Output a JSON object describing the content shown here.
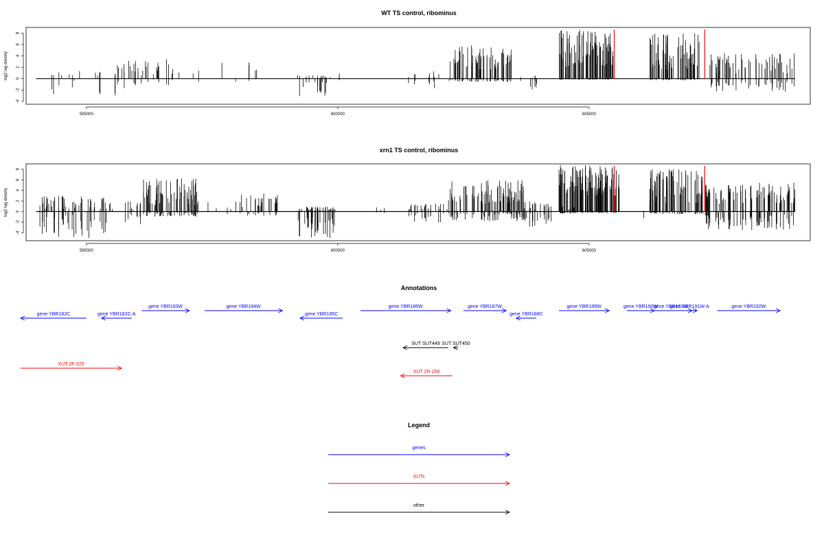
{
  "chart_data": [
    {
      "type": "bar",
      "title": "WT TS control, ribominus",
      "ylabel": "log2 tag density",
      "xlabel": "",
      "xlim": [
        593800,
        609400
      ],
      "ylim": [
        -4.5,
        9
      ],
      "xticks": [
        595000,
        600000,
        605000
      ],
      "yticks": [
        -4,
        -2,
        0,
        2,
        4,
        6,
        8
      ],
      "marker_lines": [
        605500,
        607300
      ],
      "marker_color": "#ff0000",
      "bar_color": "#000000",
      "segments": [
        {
          "start": 594000,
          "end": 595800,
          "pos": [
            0.3,
            1.5
          ],
          "neg": [
            0.3,
            3.4
          ],
          "density": 0.12
        },
        {
          "start": 595600,
          "end": 596800,
          "pos": [
            0.5,
            3.4
          ],
          "neg": [
            0,
            1.2
          ],
          "density": 0.35
        },
        {
          "start": 596800,
          "end": 598400,
          "pos": [
            0.3,
            3.0
          ],
          "neg": [
            0,
            0.6
          ],
          "density": 0.08
        },
        {
          "start": 599200,
          "end": 599900,
          "pos": [
            0,
            0.6
          ],
          "neg": [
            0.5,
            3.5
          ],
          "density": 0.5
        },
        {
          "start": 600000,
          "end": 600300,
          "pos": [
            0.3,
            1.0
          ],
          "neg": [
            0,
            0.3
          ],
          "density": 0.1
        },
        {
          "start": 601200,
          "end": 602100,
          "pos": [
            0.3,
            1.3
          ],
          "neg": [
            0.3,
            1.8
          ],
          "density": 0.12
        },
        {
          "start": 602200,
          "end": 603500,
          "pos": [
            1.5,
            6.0
          ],
          "neg": [
            0,
            0.6
          ],
          "density": 0.9
        },
        {
          "start": 603500,
          "end": 604000,
          "pos": [
            0,
            0.6
          ],
          "neg": [
            0.3,
            2.3
          ],
          "density": 0.2
        },
        {
          "start": 604400,
          "end": 605500,
          "pos": [
            2.0,
            8.6
          ],
          "neg": [
            0,
            0.2
          ],
          "density": 1.4
        },
        {
          "start": 606200,
          "end": 607200,
          "pos": [
            1.5,
            8.0
          ],
          "neg": [
            0,
            0.3
          ],
          "density": 1.1
        },
        {
          "start": 607400,
          "end": 609100,
          "pos": [
            0.8,
            4.5
          ],
          "neg": [
            0,
            2.3
          ],
          "density": 0.55
        }
      ]
    },
    {
      "type": "bar",
      "title": "xrn1 TS control, ribominus",
      "ylabel": "log2 tag density",
      "xlabel": "",
      "xlim": [
        593800,
        609400
      ],
      "ylim": [
        -5.5,
        9
      ],
      "xticks": [
        595000,
        600000,
        605000
      ],
      "yticks": [
        -4,
        -2,
        0,
        2,
        4,
        6,
        8
      ],
      "marker_lines": [
        605500,
        607300
      ],
      "marker_color": "#ff0000",
      "bar_color": "#000000",
      "segments": [
        {
          "start": 594000,
          "end": 595400,
          "pos": [
            0.5,
            3.0
          ],
          "neg": [
            0.5,
            5.0
          ],
          "density": 0.6
        },
        {
          "start": 595400,
          "end": 596100,
          "pos": [
            0.3,
            2.0
          ],
          "neg": [
            0,
            2.5
          ],
          "density": 0.3
        },
        {
          "start": 596100,
          "end": 597200,
          "pos": [
            1.0,
            6.3
          ],
          "neg": [
            0,
            1.0
          ],
          "density": 1.0
        },
        {
          "start": 597200,
          "end": 598000,
          "pos": [
            0.3,
            2.0
          ],
          "neg": [
            0,
            0.5
          ],
          "density": 0.15
        },
        {
          "start": 598000,
          "end": 598800,
          "pos": [
            0.5,
            3.5
          ],
          "neg": [
            0,
            0.8
          ],
          "density": 0.5
        },
        {
          "start": 599200,
          "end": 599950,
          "pos": [
            0,
            1.0
          ],
          "neg": [
            1.0,
            5.0
          ],
          "density": 1.0
        },
        {
          "start": 600300,
          "end": 601000,
          "pos": [
            0.3,
            0.8
          ],
          "neg": [
            0,
            0.3
          ],
          "density": 0.05
        },
        {
          "start": 601300,
          "end": 602200,
          "pos": [
            0.3,
            1.5
          ],
          "neg": [
            0.3,
            2.2
          ],
          "density": 0.35
        },
        {
          "start": 602200,
          "end": 603700,
          "pos": [
            1.5,
            6.0
          ],
          "neg": [
            0,
            1.8
          ],
          "density": 1.0
        },
        {
          "start": 603700,
          "end": 604300,
          "pos": [
            0.3,
            2.0
          ],
          "neg": [
            0.3,
            3.0
          ],
          "density": 0.6
        },
        {
          "start": 604300,
          "end": 605100,
          "pos": [
            0.3,
            1.0
          ],
          "neg": [
            0,
            0.5
          ],
          "density": 0.1
        },
        {
          "start": 604400,
          "end": 605600,
          "pos": [
            3.0,
            8.8
          ],
          "neg": [
            0,
            0.3
          ],
          "density": 1.6
        },
        {
          "start": 605800,
          "end": 606100,
          "pos": [
            0,
            0.5
          ],
          "neg": [
            0,
            1.5
          ],
          "density": 0.1
        },
        {
          "start": 606200,
          "end": 607300,
          "pos": [
            1.5,
            8.2
          ],
          "neg": [
            0,
            0.5
          ],
          "density": 1.2
        },
        {
          "start": 607300,
          "end": 609100,
          "pos": [
            1.5,
            5.5
          ],
          "neg": [
            0.5,
            3.5
          ],
          "density": 0.8
        }
      ]
    }
  ],
  "annotations": {
    "title": "Annotations",
    "tracks": [
      {
        "label": "gene YBR182C",
        "start": 593600,
        "end": 595000,
        "dir": "left",
        "color": "#0000ff",
        "row": 2
      },
      {
        "label": "gene YBR182C-A",
        "start": 595300,
        "end": 595900,
        "dir": "left",
        "color": "#0000ff",
        "row": 2
      },
      {
        "label": "gene YBR183W",
        "start": 596100,
        "end": 597050,
        "dir": "right",
        "color": "#0000ff",
        "row": 1
      },
      {
        "label": "gene YBR184W",
        "start": 597350,
        "end": 598900,
        "dir": "right",
        "color": "#0000ff",
        "row": 1
      },
      {
        "label": "gene YBR185C",
        "start": 599250,
        "end": 600100,
        "dir": "left",
        "color": "#0000ff",
        "row": 2
      },
      {
        "label": "gene YBR186W",
        "start": 600450,
        "end": 602250,
        "dir": "right",
        "color": "#0000ff",
        "row": 1
      },
      {
        "label": "gene YBR187W",
        "start": 602500,
        "end": 603350,
        "dir": "right",
        "color": "#0000ff",
        "row": 1
      },
      {
        "label": "gene YBR188C",
        "start": 603550,
        "end": 603950,
        "dir": "left",
        "color": "#0000ff",
        "row": 2
      },
      {
        "label": "gene YBR189W",
        "start": 604400,
        "end": 605400,
        "dir": "right",
        "color": "#0000ff",
        "row": 1
      },
      {
        "label": "gene YBR190W",
        "start": 605750,
        "end": 606300,
        "dir": "right",
        "color": "#0000ff",
        "row": 1
      },
      {
        "label": "gene YBR191W",
        "start": 606200,
        "end": 607050,
        "dir": "right",
        "color": "#0000ff",
        "row": 1
      },
      {
        "label": "gene YBR191W-A",
        "start": 606850,
        "end": 607150,
        "dir": "right",
        "color": "#0000ff",
        "row": 1
      },
      {
        "label": "gene YBR192W",
        "start": 607550,
        "end": 608800,
        "dir": "right",
        "color": "#0000ff",
        "row": 1
      },
      {
        "label": "SUT SUT449",
        "start": 601300,
        "end": 602200,
        "dir": "left",
        "color": "#000000",
        "row": 3
      },
      {
        "label": "SUT SUT450",
        "start": 602300,
        "end": 602400,
        "dir": "left",
        "color": "#000000",
        "row": 3
      },
      {
        "label": "XUT 2F-225",
        "start": 593600,
        "end": 595700,
        "dir": "right",
        "color": "#ff0000",
        "row": 4
      },
      {
        "label": "XUT 2R-256",
        "start": 601250,
        "end": 602280,
        "dir": "left",
        "color": "#ff0000",
        "row": 5
      }
    ]
  },
  "legend": {
    "title": "Legend",
    "items": [
      {
        "label": "genes",
        "color": "#0000ff"
      },
      {
        "label": "XUTs",
        "color": "#ff0000"
      },
      {
        "label": "other",
        "color": "#000000"
      }
    ]
  }
}
